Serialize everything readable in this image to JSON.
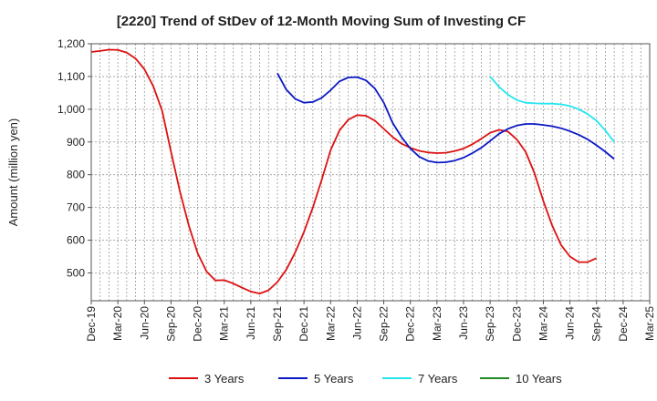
{
  "chart_data": {
    "type": "line",
    "title": "[2220]  Trend of StDev of 12-Month Moving Sum of Investing CF",
    "ylabel": "Amount (million yen)",
    "xlabel": "",
    "ylim": [
      415,
      1200
    ],
    "yticks": [
      500,
      600,
      700,
      800,
      900,
      1000,
      1100,
      1200
    ],
    "ytick_labels": [
      "500",
      "600",
      "700",
      "800",
      "900",
      "1,000",
      "1,100",
      "1,200"
    ],
    "x_categories": [
      "Dec-19",
      "Mar-20",
      "Jun-20",
      "Sep-20",
      "Dec-20",
      "Mar-21",
      "Jun-21",
      "Sep-21",
      "Dec-21",
      "Mar-22",
      "Jun-22",
      "Sep-22",
      "Dec-22",
      "Mar-23",
      "Jun-23",
      "Sep-23",
      "Dec-23",
      "Mar-24",
      "Jun-24",
      "Sep-24",
      "Dec-24",
      "Mar-25"
    ],
    "grid": true,
    "legend_position": "bottom",
    "series": [
      {
        "name": "3 Years",
        "color": "#dd1111",
        "start_index": 0,
        "values": [
          1175,
          1178,
          1182,
          1181,
          1173,
          1155,
          1122,
          1070,
          995,
          870,
          750,
          645,
          560,
          505,
          477,
          478,
          468,
          455,
          443,
          437,
          447,
          472,
          510,
          562,
          625,
          700,
          785,
          875,
          935,
          968,
          982,
          980,
          965,
          940,
          915,
          895,
          882,
          873,
          868,
          866,
          867,
          872,
          880,
          893,
          910,
          928,
          937,
          932,
          908,
          870,
          805,
          720,
          645,
          585,
          550,
          533,
          533,
          545
        ]
      },
      {
        "name": "5 Years",
        "color": "#0b18c4",
        "start_index": 21,
        "values": [
          1110,
          1060,
          1032,
          1020,
          1022,
          1035,
          1058,
          1085,
          1097,
          1098,
          1088,
          1063,
          1020,
          958,
          915,
          880,
          855,
          842,
          837,
          838,
          843,
          852,
          866,
          882,
          903,
          925,
          940,
          950,
          955,
          955,
          952,
          948,
          942,
          933,
          922,
          908,
          890,
          870,
          848
        ]
      },
      {
        "name": "7 Years",
        "color": "#22e6f0",
        "start_index": 45,
        "values": [
          1100,
          1068,
          1045,
          1028,
          1020,
          1018,
          1017,
          1017,
          1015,
          1010,
          1000,
          985,
          965,
          935,
          900
        ]
      },
      {
        "name": "10 Years",
        "color": "#1f8a1f",
        "start_index": 0,
        "values": []
      }
    ]
  }
}
